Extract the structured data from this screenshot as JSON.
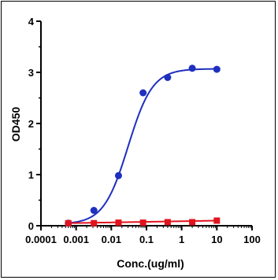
{
  "chart_data": {
    "type": "scatter",
    "title": "",
    "xlabel": "Conc.(ug/ml)",
    "ylabel": "OD450",
    "x_scale": "log",
    "xlim": [
      0.0001,
      100
    ],
    "ylim": [
      0,
      4
    ],
    "x_ticks": [
      "0.0001",
      "0.001",
      "0.01",
      "0.1",
      "1",
      "10",
      "100"
    ],
    "y_ticks": [
      "0",
      "1",
      "2",
      "3",
      "4"
    ],
    "grid": false,
    "legend": "none",
    "series": [
      {
        "color": "#1f2fbf",
        "marker": "circle",
        "fit": "sigmoid",
        "x": [
          0.0006,
          0.0032,
          0.016,
          0.08,
          0.4,
          2,
          10
        ],
        "y": [
          0.05,
          0.3,
          0.98,
          2.6,
          2.9,
          3.08,
          3.06
        ]
      },
      {
        "color": "#e0141e",
        "marker": "square",
        "fit": "line",
        "x": [
          0.0006,
          0.0032,
          0.016,
          0.08,
          0.4,
          2,
          10
        ],
        "y": [
          0.05,
          0.05,
          0.06,
          0.06,
          0.07,
          0.07,
          0.1
        ]
      }
    ]
  }
}
